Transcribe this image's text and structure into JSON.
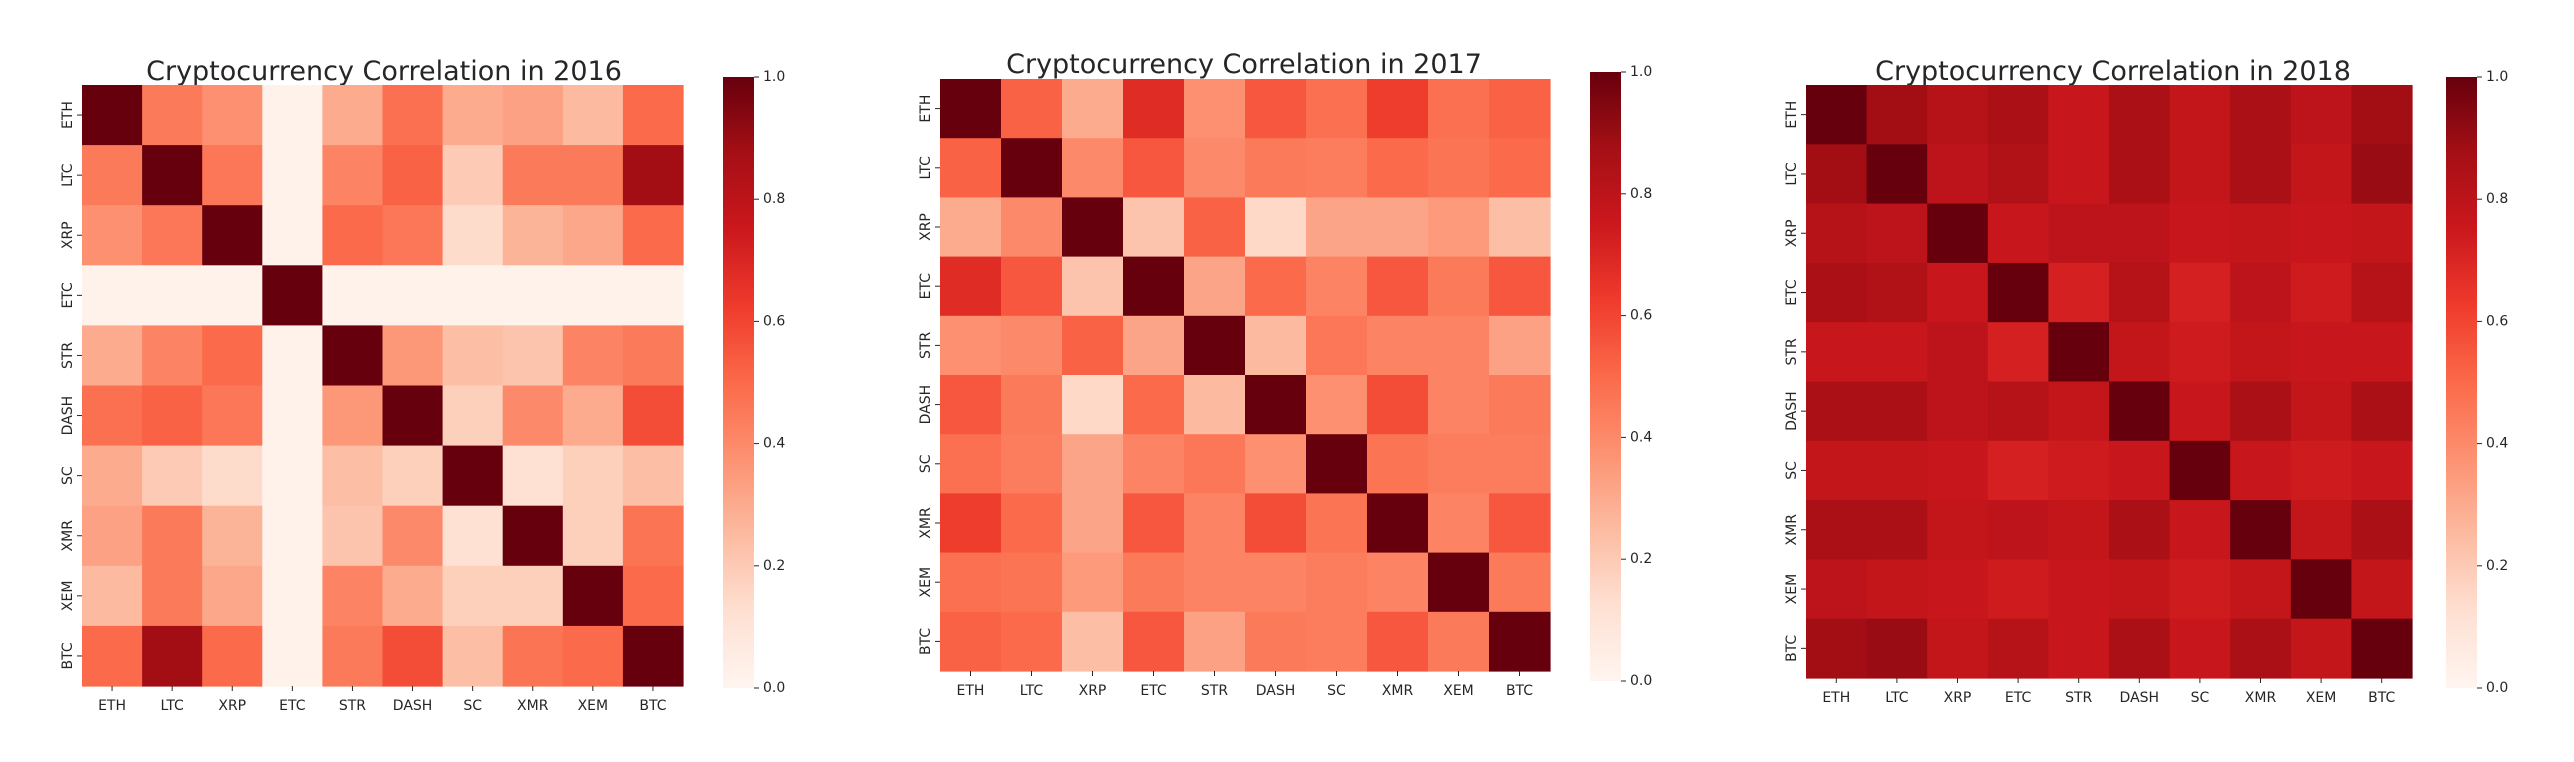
{
  "colorscale": {
    "name": "Reds",
    "stops": [
      "#fff5f0",
      "#fee0d2",
      "#fcbba1",
      "#fc9272",
      "#fb6a4a",
      "#ef3b2c",
      "#cb181d",
      "#a50f15",
      "#67000d"
    ]
  },
  "chart_data": [
    {
      "type": "heatmap",
      "title": "Cryptocurrency Correlation in 2016",
      "categories": [
        "ETH",
        "LTC",
        "XRP",
        "ETC",
        "STR",
        "DASH",
        "SC",
        "XMR",
        "XEM",
        "BTC"
      ],
      "zlim": [
        0,
        1
      ],
      "colorbar_ticks": [
        "0.0",
        "0.2",
        "0.4",
        "0.6",
        "0.8",
        "1.0"
      ],
      "values": [
        [
          1.0,
          0.45,
          0.38,
          0.02,
          0.3,
          0.48,
          0.3,
          0.33,
          0.25,
          0.5
        ],
        [
          0.45,
          1.0,
          0.46,
          0.02,
          0.42,
          0.52,
          0.2,
          0.45,
          0.45,
          0.88
        ],
        [
          0.38,
          0.46,
          1.0,
          0.02,
          0.5,
          0.46,
          0.14,
          0.27,
          0.31,
          0.5
        ],
        [
          0.02,
          0.02,
          0.02,
          1.0,
          0.02,
          0.02,
          0.02,
          0.02,
          0.02,
          0.02
        ],
        [
          0.3,
          0.42,
          0.5,
          0.02,
          1.0,
          0.36,
          0.24,
          0.22,
          0.42,
          0.45
        ],
        [
          0.48,
          0.52,
          0.46,
          0.02,
          0.36,
          1.0,
          0.18,
          0.4,
          0.3,
          0.58
        ],
        [
          0.3,
          0.2,
          0.14,
          0.02,
          0.24,
          0.18,
          1.0,
          0.12,
          0.18,
          0.24
        ],
        [
          0.33,
          0.45,
          0.27,
          0.02,
          0.22,
          0.4,
          0.12,
          1.0,
          0.18,
          0.47
        ],
        [
          0.25,
          0.45,
          0.31,
          0.02,
          0.42,
          0.3,
          0.18,
          0.18,
          1.0,
          0.5
        ],
        [
          0.5,
          0.88,
          0.5,
          0.02,
          0.45,
          0.58,
          0.24,
          0.47,
          0.5,
          1.0
        ]
      ]
    },
    {
      "type": "heatmap",
      "title": "Cryptocurrency Correlation in 2017",
      "categories": [
        "ETH",
        "LTC",
        "XRP",
        "ETC",
        "STR",
        "DASH",
        "SC",
        "XMR",
        "XEM",
        "BTC"
      ],
      "zlim": [
        0,
        1
      ],
      "colorbar_ticks": [
        "0.0",
        "0.2",
        "0.4",
        "0.6",
        "0.8",
        "1.0"
      ],
      "values": [
        [
          1.0,
          0.52,
          0.3,
          0.68,
          0.38,
          0.55,
          0.48,
          0.62,
          0.48,
          0.52
        ],
        [
          0.52,
          1.0,
          0.4,
          0.55,
          0.4,
          0.45,
          0.44,
          0.5,
          0.47,
          0.5
        ],
        [
          0.3,
          0.4,
          1.0,
          0.22,
          0.52,
          0.15,
          0.32,
          0.32,
          0.35,
          0.24
        ],
        [
          0.68,
          0.55,
          0.22,
          1.0,
          0.32,
          0.5,
          0.42,
          0.55,
          0.45,
          0.55
        ],
        [
          0.38,
          0.4,
          0.52,
          0.32,
          1.0,
          0.25,
          0.46,
          0.42,
          0.42,
          0.33
        ],
        [
          0.55,
          0.45,
          0.15,
          0.5,
          0.25,
          1.0,
          0.38,
          0.58,
          0.42,
          0.45
        ],
        [
          0.48,
          0.44,
          0.32,
          0.42,
          0.46,
          0.38,
          1.0,
          0.47,
          0.44,
          0.44
        ],
        [
          0.62,
          0.5,
          0.32,
          0.55,
          0.42,
          0.58,
          0.47,
          1.0,
          0.42,
          0.55
        ],
        [
          0.48,
          0.47,
          0.35,
          0.45,
          0.42,
          0.42,
          0.44,
          0.42,
          1.0,
          0.45
        ],
        [
          0.52,
          0.5,
          0.24,
          0.55,
          0.33,
          0.45,
          0.44,
          0.55,
          0.45,
          1.0
        ]
      ]
    },
    {
      "type": "heatmap",
      "title": "Cryptocurrency Correlation in 2018",
      "categories": [
        "ETH",
        "LTC",
        "XRP",
        "ETC",
        "STR",
        "DASH",
        "SC",
        "XMR",
        "XEM",
        "BTC"
      ],
      "zlim": [
        0,
        1
      ],
      "colorbar_ticks": [
        "0.0",
        "0.2",
        "0.4",
        "0.6",
        "0.8",
        "1.0"
      ],
      "values": [
        [
          1.0,
          0.88,
          0.82,
          0.86,
          0.76,
          0.86,
          0.78,
          0.86,
          0.8,
          0.88
        ],
        [
          0.88,
          1.0,
          0.8,
          0.84,
          0.76,
          0.86,
          0.78,
          0.86,
          0.78,
          0.9
        ],
        [
          0.82,
          0.8,
          1.0,
          0.76,
          0.8,
          0.8,
          0.76,
          0.78,
          0.76,
          0.78
        ],
        [
          0.86,
          0.84,
          0.76,
          1.0,
          0.72,
          0.82,
          0.72,
          0.8,
          0.74,
          0.82
        ],
        [
          0.76,
          0.76,
          0.8,
          0.72,
          1.0,
          0.78,
          0.74,
          0.78,
          0.76,
          0.76
        ],
        [
          0.86,
          0.86,
          0.8,
          0.82,
          0.78,
          1.0,
          0.76,
          0.86,
          0.78,
          0.86
        ],
        [
          0.78,
          0.78,
          0.76,
          0.72,
          0.74,
          0.76,
          1.0,
          0.76,
          0.74,
          0.76
        ],
        [
          0.86,
          0.86,
          0.78,
          0.8,
          0.78,
          0.86,
          0.76,
          1.0,
          0.78,
          0.86
        ],
        [
          0.8,
          0.78,
          0.76,
          0.74,
          0.76,
          0.78,
          0.74,
          0.78,
          1.0,
          0.78
        ],
        [
          0.88,
          0.9,
          0.78,
          0.82,
          0.76,
          0.86,
          0.76,
          0.86,
          0.78,
          1.0
        ]
      ]
    }
  ]
}
